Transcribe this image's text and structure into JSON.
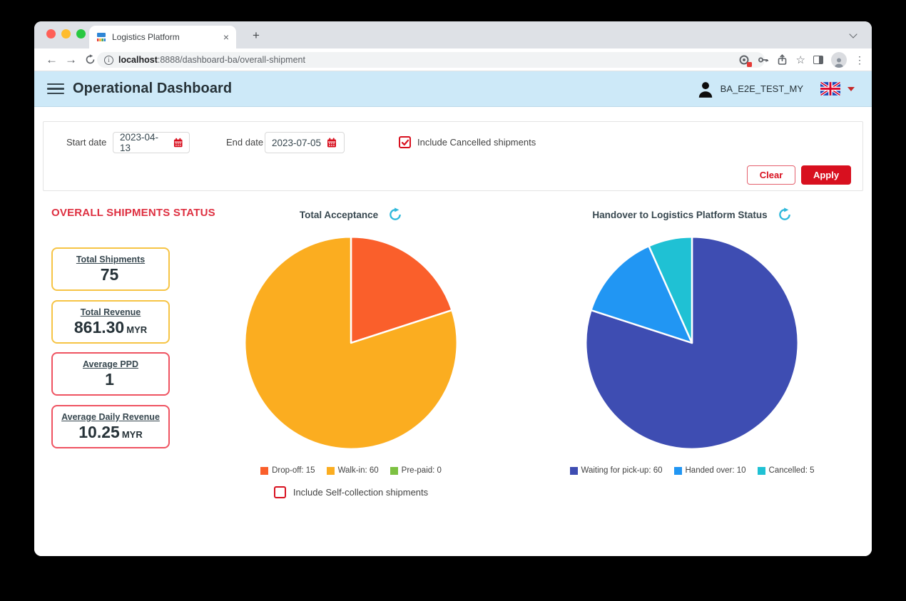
{
  "browser": {
    "tab_title": "Logistics Platform",
    "url_host": "localhost",
    "url_rest": ":8888/dashboard-ba/overall-shipment"
  },
  "header": {
    "title": "Operational Dashboard",
    "username": "BA_E2E_TEST_MY"
  },
  "filters": {
    "start_date": {
      "label": "Start date",
      "value": "2023-04-13"
    },
    "end_date": {
      "label": "End date",
      "value": "2023-07-05"
    },
    "include_cancelled": {
      "label": "Include Cancelled shipments",
      "checked": true
    },
    "clear_label": "Clear",
    "apply_label": "Apply"
  },
  "stats": {
    "heading": "OVERALL SHIPMENTS STATUS",
    "cards": [
      {
        "title": "Total Shipments",
        "value": "75",
        "unit": "",
        "accent": "#f6c445"
      },
      {
        "title": "Total Revenue",
        "value": "861.30",
        "unit": "MYR",
        "accent": "#f6c445"
      },
      {
        "title": "Average PPD",
        "value": "1",
        "unit": "",
        "accent": "#ef5361"
      },
      {
        "title": "Average Daily Revenue",
        "value": "10.25",
        "unit": "MYR",
        "accent": "#ef5361"
      }
    ]
  },
  "chart_data": [
    {
      "type": "pie",
      "title": "Total Acceptance",
      "labels": [
        "Drop-off",
        "Walk-in",
        "Pre-paid"
      ],
      "values": [
        15,
        60,
        0
      ],
      "colors": [
        "#fa5f2b",
        "#fbad20",
        "#7dc142"
      ],
      "legend": [
        "Drop-off: 15",
        "Walk-in: 60",
        "Pre-paid: 0"
      ],
      "legend_position": "bottom",
      "start_angle_deg": -90,
      "direction": "clockwise",
      "total": 75
    },
    {
      "type": "pie",
      "title": "Handover to Logistics Platform Status",
      "labels": [
        "Waiting for pick-up",
        "Handed over",
        "Cancelled"
      ],
      "values": [
        60,
        10,
        5
      ],
      "colors": [
        "#3e4db2",
        "#2196f3",
        "#1fc1d4"
      ],
      "legend": [
        "Waiting for pick-up: 60",
        "Handed over: 10",
        "Cancelled: 5"
      ],
      "legend_position": "bottom",
      "start_angle_deg": -90,
      "direction": "clockwise",
      "total": 75
    }
  ],
  "self_collection": {
    "label": "Include Self-collection shipments",
    "checked": false
  },
  "colors": {
    "accent_red": "#d8101f",
    "header_bg": "#cde9f8",
    "heading_red": "#de2f40",
    "refresh_cyan": "#2eb8db"
  }
}
